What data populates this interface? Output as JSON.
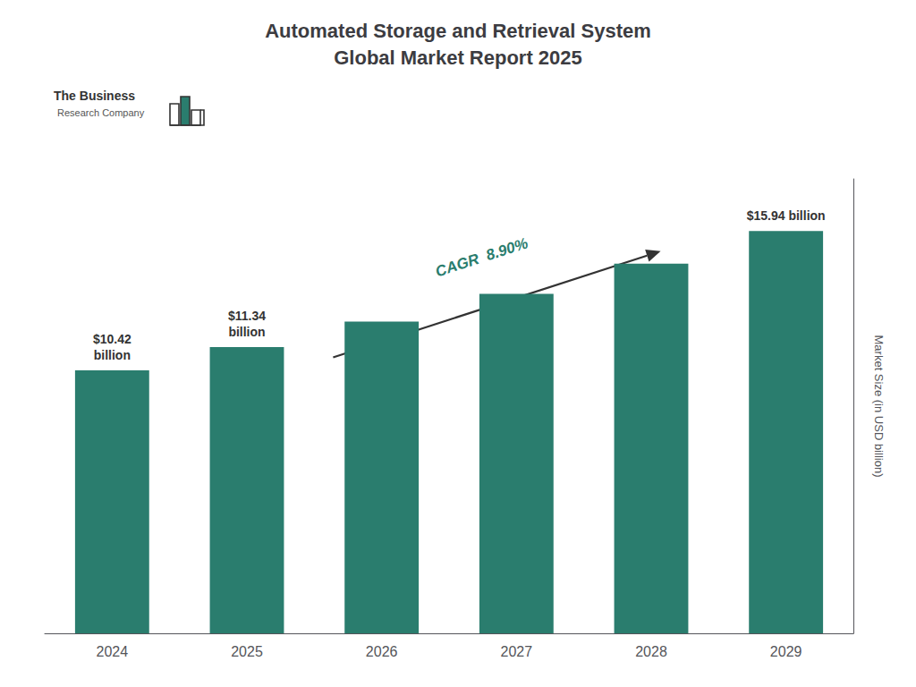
{
  "chart_data": {
    "type": "bar",
    "title": "Automated Storage and Retrieval System\nGlobal Market Report 2025",
    "categories": [
      "2024",
      "2025",
      "2026",
      "2027",
      "2028",
      "2029"
    ],
    "values": [
      10.42,
      11.34,
      12.35,
      13.45,
      14.64,
      15.94
    ],
    "color": "#2a7d6e",
    "ylabel": "Market Size (in USD billion)",
    "ylim": [
      0,
      18
    ],
    "grid": false,
    "tick_labels": "x",
    "annotations": [
      {
        "text": "$10.42\nbillion",
        "x": "2024"
      },
      {
        "text": "$11.34\nbillion",
        "x": "2025"
      },
      {
        "text": "$15.94 billion",
        "x": "2029"
      },
      {
        "text": "CAGR  8.90%",
        "arrow": [
          "2026",
          "2028"
        ]
      }
    ],
    "logo": [
      "The Business",
      "Research Company"
    ]
  }
}
